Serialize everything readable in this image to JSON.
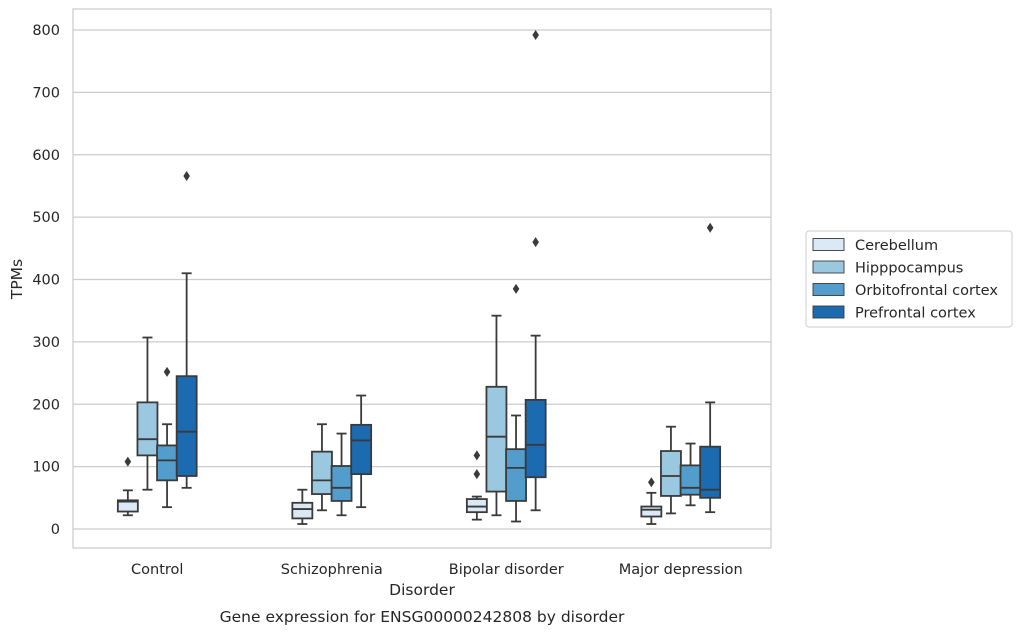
{
  "chart_data": {
    "type": "box",
    "title": "",
    "caption": "Gene expression for ENSG00000242808 by disorder",
    "xlabel": "Disorder",
    "ylabel": "TPMs",
    "ylim": [
      -30,
      832
    ],
    "yticks": [
      0,
      100,
      200,
      300,
      400,
      500,
      600,
      700,
      800
    ],
    "grid": "horizontal",
    "legend_position": "right",
    "categories": [
      "Control",
      "Schizophrenia",
      "Bipolar disorder",
      "Major depression"
    ],
    "series": [
      {
        "name": "Cerebellum",
        "color": "#dbe9f6",
        "boxes": [
          {
            "whislo": 22,
            "q1": 28,
            "med": 44,
            "q3": 46,
            "whishi": 62,
            "fliers": [
              108
            ]
          },
          {
            "whislo": 8,
            "q1": 17,
            "med": 32,
            "q3": 42,
            "whishi": 63,
            "fliers": []
          },
          {
            "whislo": 15,
            "q1": 27,
            "med": 36,
            "q3": 48,
            "whishi": 52,
            "fliers": [
              88,
              118
            ]
          },
          {
            "whislo": 8,
            "q1": 20,
            "med": 31,
            "q3": 36,
            "whishi": 58,
            "fliers": [
              75
            ]
          }
        ]
      },
      {
        "name": "Hipppocampus",
        "color": "#9ac8e0",
        "boxes": [
          {
            "whislo": 63,
            "q1": 118,
            "med": 144,
            "q3": 203,
            "whishi": 307,
            "fliers": []
          },
          {
            "whislo": 30,
            "q1": 56,
            "med": 78,
            "q3": 124,
            "whishi": 168,
            "fliers": []
          },
          {
            "whislo": 22,
            "q1": 60,
            "med": 148,
            "q3": 228,
            "whishi": 342,
            "fliers": []
          },
          {
            "whislo": 25,
            "q1": 53,
            "med": 85,
            "q3": 125,
            "whishi": 164,
            "fliers": []
          }
        ]
      },
      {
        "name": "Orbitofrontal cortex",
        "color": "#529dcc",
        "boxes": [
          {
            "whislo": 35,
            "q1": 78,
            "med": 110,
            "q3": 134,
            "whishi": 168,
            "fliers": [
              252
            ]
          },
          {
            "whislo": 22,
            "q1": 45,
            "med": 66,
            "q3": 101,
            "whishi": 153,
            "fliers": []
          },
          {
            "whislo": 12,
            "q1": 45,
            "med": 98,
            "q3": 128,
            "whishi": 182,
            "fliers": [
              385
            ]
          },
          {
            "whislo": 38,
            "q1": 55,
            "med": 66,
            "q3": 102,
            "whishi": 137,
            "fliers": []
          }
        ]
      },
      {
        "name": "Prefrontal cortex",
        "color": "#1c6aaf",
        "boxes": [
          {
            "whislo": 66,
            "q1": 85,
            "med": 156,
            "q3": 245,
            "whishi": 410,
            "fliers": [
              566
            ]
          },
          {
            "whislo": 35,
            "q1": 88,
            "med": 142,
            "q3": 167,
            "whishi": 214,
            "fliers": []
          },
          {
            "whislo": 30,
            "q1": 83,
            "med": 135,
            "q3": 207,
            "whishi": 310,
            "fliers": [
              460,
              792
            ]
          },
          {
            "whislo": 27,
            "q1": 50,
            "med": 63,
            "q3": 132,
            "whishi": 203,
            "fliers": [
              483
            ]
          }
        ]
      }
    ]
  },
  "colors": {
    "grid": "#cccccc",
    "frame": "#cccccc",
    "whisker": "#3a3a3a",
    "text": "#262626"
  }
}
